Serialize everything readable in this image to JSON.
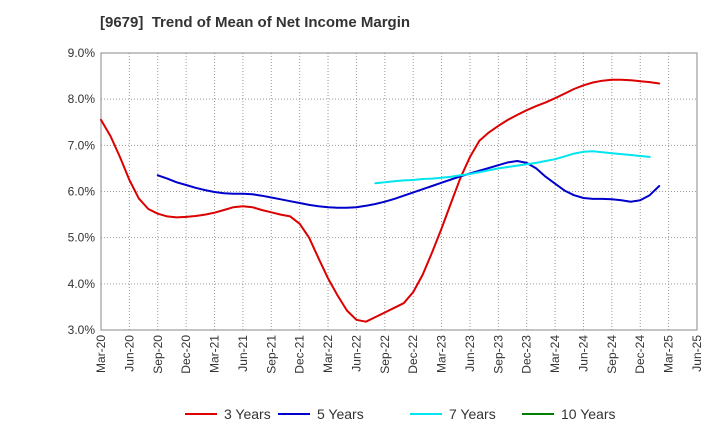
{
  "chart_data": {
    "type": "line",
    "title": "[9679]  Trend of Mean of Net Income Margin",
    "xlabel": "",
    "ylabel": "",
    "x_ticks": [
      "Mar-20",
      "Jun-20",
      "Sep-20",
      "Dec-20",
      "Mar-21",
      "Jun-21",
      "Sep-21",
      "Dec-21",
      "Mar-22",
      "Jun-22",
      "Sep-22",
      "Dec-22",
      "Mar-23",
      "Jun-23",
      "Sep-23",
      "Dec-23",
      "Mar-24",
      "Jun-24",
      "Sep-24",
      "Dec-24",
      "Mar-25",
      "Jun-25"
    ],
    "y_ticks": [
      "3.0%",
      "4.0%",
      "5.0%",
      "6.0%",
      "7.0%",
      "8.0%",
      "9.0%"
    ],
    "ylim": [
      3.0,
      9.0
    ],
    "grid": true,
    "legend_position": "bottom",
    "series": [
      {
        "name": "3 Years",
        "color": "#dd0000",
        "points": [
          [
            "Mar-20",
            7.55
          ],
          [
            "Apr-20",
            7.2
          ],
          [
            "May-20",
            6.75
          ],
          [
            "Jun-20",
            6.25
          ],
          [
            "Jul-20",
            5.85
          ],
          [
            "Aug-20",
            5.62
          ],
          [
            "Sep-20",
            5.52
          ],
          [
            "Oct-20",
            5.46
          ],
          [
            "Nov-20",
            5.44
          ],
          [
            "Dec-20",
            5.45
          ],
          [
            "Jan-21",
            5.47
          ],
          [
            "Feb-21",
            5.5
          ],
          [
            "Mar-21",
            5.54
          ],
          [
            "Apr-21",
            5.6
          ],
          [
            "May-21",
            5.66
          ],
          [
            "Jun-21",
            5.68
          ],
          [
            "Jul-21",
            5.66
          ],
          [
            "Aug-21",
            5.6
          ],
          [
            "Sep-21",
            5.55
          ],
          [
            "Oct-21",
            5.5
          ],
          [
            "Nov-21",
            5.46
          ],
          [
            "Dec-21",
            5.3
          ],
          [
            "Jan-22",
            5.0
          ],
          [
            "Feb-22",
            4.55
          ],
          [
            "Mar-22",
            4.12
          ],
          [
            "Apr-22",
            3.75
          ],
          [
            "May-22",
            3.42
          ],
          [
            "Jun-22",
            3.22
          ],
          [
            "Jul-22",
            3.18
          ],
          [
            "Aug-22",
            3.28
          ],
          [
            "Sep-22",
            3.38
          ],
          [
            "Oct-22",
            3.48
          ],
          [
            "Nov-22",
            3.58
          ],
          [
            "Dec-22",
            3.82
          ],
          [
            "Jan-23",
            4.2
          ],
          [
            "Feb-23",
            4.68
          ],
          [
            "Mar-23",
            5.2
          ],
          [
            "Apr-23",
            5.75
          ],
          [
            "May-23",
            6.3
          ],
          [
            "Jun-23",
            6.75
          ],
          [
            "Jul-23",
            7.1
          ],
          [
            "Aug-23",
            7.28
          ],
          [
            "Sep-23",
            7.42
          ],
          [
            "Oct-23",
            7.55
          ],
          [
            "Nov-23",
            7.66
          ],
          [
            "Dec-23",
            7.76
          ],
          [
            "Jan-24",
            7.85
          ],
          [
            "Feb-24",
            7.93
          ],
          [
            "Mar-24",
            8.02
          ],
          [
            "Apr-24",
            8.12
          ],
          [
            "May-24",
            8.22
          ],
          [
            "Jun-24",
            8.3
          ],
          [
            "Jul-24",
            8.36
          ],
          [
            "Aug-24",
            8.4
          ],
          [
            "Sep-24",
            8.42
          ],
          [
            "Oct-24",
            8.42
          ],
          [
            "Nov-24",
            8.41
          ],
          [
            "Dec-24",
            8.39
          ],
          [
            "Jan-25",
            8.37
          ],
          [
            "Feb-25",
            8.34
          ]
        ]
      },
      {
        "name": "5 Years",
        "color": "#0000cc",
        "points": [
          [
            "Sep-20",
            6.35
          ],
          [
            "Oct-20",
            6.28
          ],
          [
            "Nov-20",
            6.2
          ],
          [
            "Dec-20",
            6.14
          ],
          [
            "Jan-21",
            6.08
          ],
          [
            "Feb-21",
            6.03
          ],
          [
            "Mar-21",
            5.99
          ],
          [
            "Apr-21",
            5.96
          ],
          [
            "May-21",
            5.95
          ],
          [
            "Jun-21",
            5.95
          ],
          [
            "Jul-21",
            5.94
          ],
          [
            "Aug-21",
            5.91
          ],
          [
            "Sep-21",
            5.87
          ],
          [
            "Oct-21",
            5.83
          ],
          [
            "Nov-21",
            5.79
          ],
          [
            "Dec-21",
            5.75
          ],
          [
            "Jan-22",
            5.71
          ],
          [
            "Feb-22",
            5.68
          ],
          [
            "Mar-22",
            5.66
          ],
          [
            "Apr-22",
            5.65
          ],
          [
            "May-22",
            5.65
          ],
          [
            "Jun-22",
            5.66
          ],
          [
            "Jul-22",
            5.69
          ],
          [
            "Aug-22",
            5.73
          ],
          [
            "Sep-22",
            5.78
          ],
          [
            "Oct-22",
            5.84
          ],
          [
            "Nov-22",
            5.91
          ],
          [
            "Dec-22",
            5.98
          ],
          [
            "Jan-23",
            6.05
          ],
          [
            "Feb-23",
            6.12
          ],
          [
            "Mar-23",
            6.19
          ],
          [
            "Apr-23",
            6.26
          ],
          [
            "May-23",
            6.33
          ],
          [
            "Jun-23",
            6.39
          ],
          [
            "Jul-23",
            6.45
          ],
          [
            "Aug-23",
            6.51
          ],
          [
            "Sep-23",
            6.57
          ],
          [
            "Oct-23",
            6.63
          ],
          [
            "Nov-23",
            6.66
          ],
          [
            "Dec-23",
            6.62
          ],
          [
            "Jan-24",
            6.5
          ],
          [
            "Feb-24",
            6.32
          ],
          [
            "Mar-24",
            6.17
          ],
          [
            "Apr-24",
            6.02
          ],
          [
            "May-24",
            5.92
          ],
          [
            "Jun-24",
            5.86
          ],
          [
            "Jul-24",
            5.84
          ],
          [
            "Aug-24",
            5.84
          ],
          [
            "Sep-24",
            5.83
          ],
          [
            "Oct-24",
            5.81
          ],
          [
            "Nov-24",
            5.78
          ],
          [
            "Dec-24",
            5.81
          ],
          [
            "Jan-25",
            5.92
          ],
          [
            "Feb-25",
            6.12
          ]
        ]
      },
      {
        "name": "7 Years",
        "color": "#00e5ee",
        "points": [
          [
            "Aug-22",
            6.18
          ],
          [
            "Sep-22",
            6.2
          ],
          [
            "Oct-22",
            6.22
          ],
          [
            "Nov-22",
            6.24
          ],
          [
            "Dec-22",
            6.25
          ],
          [
            "Jan-23",
            6.27
          ],
          [
            "Feb-23",
            6.28
          ],
          [
            "Mar-23",
            6.3
          ],
          [
            "Apr-23",
            6.32
          ],
          [
            "May-23",
            6.35
          ],
          [
            "Jun-23",
            6.38
          ],
          [
            "Jul-23",
            6.42
          ],
          [
            "Aug-23",
            6.46
          ],
          [
            "Sep-23",
            6.5
          ],
          [
            "Oct-23",
            6.53
          ],
          [
            "Nov-23",
            6.56
          ],
          [
            "Dec-23",
            6.59
          ],
          [
            "Jan-24",
            6.62
          ],
          [
            "Feb-24",
            6.66
          ],
          [
            "Mar-24",
            6.7
          ],
          [
            "Apr-24",
            6.76
          ],
          [
            "May-24",
            6.82
          ],
          [
            "Jun-24",
            6.86
          ],
          [
            "Jul-24",
            6.87
          ],
          [
            "Aug-24",
            6.85
          ],
          [
            "Sep-24",
            6.83
          ],
          [
            "Oct-24",
            6.81
          ],
          [
            "Nov-24",
            6.79
          ],
          [
            "Dec-24",
            6.77
          ],
          [
            "Jan-25",
            6.75
          ]
        ]
      },
      {
        "name": "10 Years",
        "color": "#008000",
        "points": []
      }
    ]
  }
}
